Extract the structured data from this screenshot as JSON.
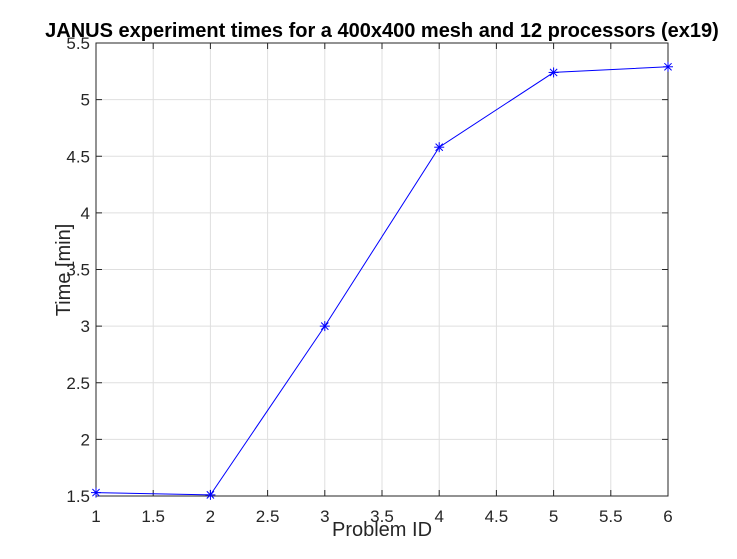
{
  "chart_data": {
    "type": "line",
    "title": "JANUS experiment times for a 400x400 mesh and 12 processors (ex19)",
    "xlabel": "Problem ID",
    "ylabel": "Time [min]",
    "xlim": [
      1,
      6
    ],
    "ylim": [
      1.5,
      5.5
    ],
    "xticks": [
      1,
      1.5,
      2,
      2.5,
      3,
      3.5,
      4,
      4.5,
      5,
      5.5,
      6
    ],
    "yticks": [
      1.5,
      2,
      2.5,
      3,
      3.5,
      4,
      4.5,
      5,
      5.5
    ],
    "xtick_labels": [
      "1",
      "1.5",
      "2",
      "2.5",
      "3",
      "3.5",
      "4",
      "4.5",
      "5",
      "5.5",
      "6"
    ],
    "ytick_labels": [
      "1.5",
      "2",
      "2.5",
      "3",
      "3.5",
      "4",
      "4.5",
      "5",
      "5.5"
    ],
    "grid": true,
    "series": [
      {
        "x": [
          1,
          2,
          3,
          4,
          5,
          6
        ],
        "y": [
          1.53,
          1.51,
          3.0,
          4.58,
          5.24,
          5.29
        ],
        "color": "#0000ff",
        "marker": "asterisk"
      }
    ]
  }
}
